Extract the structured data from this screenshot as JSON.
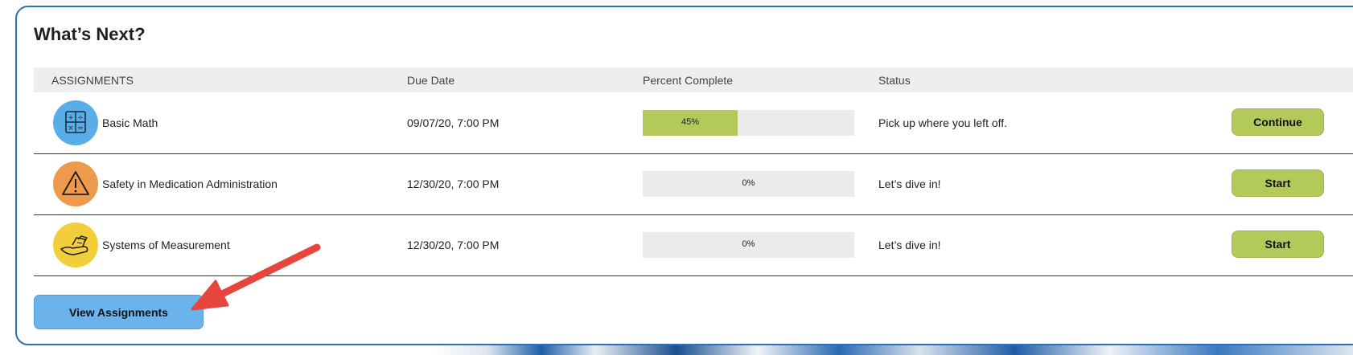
{
  "card": {
    "title": "What’s Next?"
  },
  "table": {
    "headers": {
      "assignments": "ASSIGNMENTS",
      "due_date": "Due Date",
      "percent_complete": "Percent Complete",
      "status": "Status"
    },
    "rows": [
      {
        "icon": "calculator-icon",
        "icon_color": "#5aaee8",
        "name": "Basic Math",
        "due": "09/07/20, 7:00 PM",
        "percent": 45,
        "percent_label": "45%",
        "status": "Pick up where you left off.",
        "action": "Continue"
      },
      {
        "icon": "warning-triangle-icon",
        "icon_color": "#ee9a4c",
        "name": "Safety in Medication Administration",
        "due": "12/30/20, 7:00 PM",
        "percent": 0,
        "percent_label": "0%",
        "status": "Let’s dive in!",
        "action": "Start"
      },
      {
        "icon": "measuring-cup-icon",
        "icon_color": "#f2cf3a",
        "name": "Systems of Measurement",
        "due": "12/30/20, 7:00 PM",
        "percent": 0,
        "percent_label": "0%",
        "status": "Let’s dive in!",
        "action": "Start"
      }
    ]
  },
  "footer": {
    "view_assignments": "View Assignments"
  },
  "colors": {
    "accent_border": "#2f6fb6",
    "progress_fill": "#b3c95a",
    "action_button": "#b3c95a",
    "view_button": "#6bb3ea",
    "annotation_arrow": "#e8453c"
  }
}
